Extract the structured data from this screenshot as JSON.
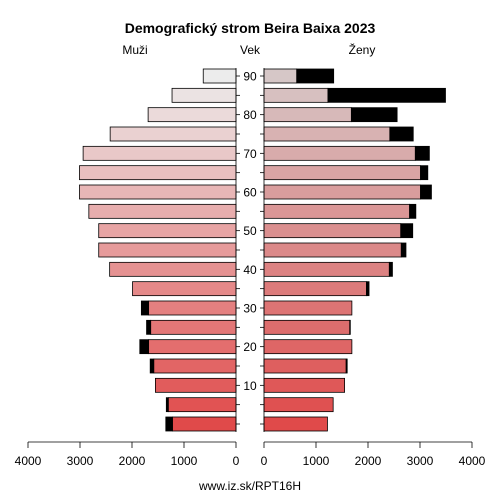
{
  "chart_data": {
    "type": "bar",
    "title": "Demografický strom Beira Baixa 2023",
    "left_label": "Muži",
    "center_label": "Vek",
    "right_label": "Ženy",
    "footer": "www.iz.sk/RPT16H",
    "age_ticks": [
      "10",
      "20",
      "30",
      "40",
      "50",
      "60",
      "70",
      "80",
      "90"
    ],
    "x_ticks": [
      "4000",
      "3000",
      "2000",
      "1000",
      "0",
      "0",
      "1000",
      "2000",
      "3000",
      "4000"
    ],
    "xlim": [
      0,
      4000
    ],
    "age_groups": [
      "0-4",
      "5-9",
      "10-14",
      "15-19",
      "20-24",
      "25-29",
      "30-34",
      "35-39",
      "40-44",
      "45-49",
      "50-54",
      "55-59",
      "60-64",
      "65-69",
      "70-74",
      "75-79",
      "80-84",
      "85-89",
      "90+"
    ],
    "series": [
      {
        "name": "Muži",
        "values": [
          1350,
          1340,
          1550,
          1650,
          1850,
          1720,
          1820,
          1990,
          2430,
          2640,
          2640,
          2830,
          3010,
          3010,
          2940,
          2420,
          1690,
          1230,
          630
        ]
      },
      {
        "name": "Muži (black part)",
        "values": [
          1220,
          1300,
          1550,
          1580,
          1680,
          1640,
          1680,
          1990,
          2430,
          2640,
          2640,
          2830,
          3010,
          3010,
          2940,
          2420,
          1690,
          1230,
          630
        ]
      },
      {
        "name": "Ženy",
        "values": [
          1220,
          1330,
          1550,
          1600,
          1690,
          1660,
          1690,
          2020,
          2470,
          2730,
          2860,
          2920,
          3220,
          3150,
          3180,
          2870,
          2560,
          3490,
          1340
        ]
      },
      {
        "name": "Ženy (black part)",
        "values": [
          1220,
          1330,
          1550,
          1580,
          1690,
          1650,
          1690,
          1970,
          2410,
          2640,
          2630,
          2800,
          3010,
          3010,
          2910,
          2420,
          1680,
          1230,
          630
        ]
      }
    ],
    "colors": {
      "male_young": "#e04a4a",
      "male_old": "#ececec",
      "female_young": "#e04a4a",
      "female_old": "#d6c7c7",
      "surplus": "#000000"
    }
  }
}
